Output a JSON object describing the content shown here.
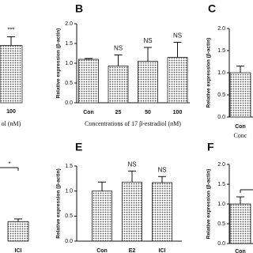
{
  "chart_data": [
    {
      "type": "bar",
      "categories": [
        "100"
      ],
      "values": [
        1.45
      ],
      "errors": [
        0.22
      ],
      "annotations": [
        "***"
      ],
      "xlabel": "ol (nM)",
      "ylim": [
        0,
        2.0
      ],
      "color": "#9a9a9a"
    },
    {
      "type": "bar",
      "title": "B",
      "categories": [
        "Con",
        "25",
        "50",
        "100"
      ],
      "values": [
        1.1,
        0.93,
        1.05,
        1.15
      ],
      "errors": [
        0.02,
        0.28,
        0.35,
        0.38
      ],
      "annotations": [
        null,
        "NS",
        "NS",
        "NS"
      ],
      "ylabel": "Relative expression (β-actin)",
      "xlabel": "Concentrations of 17 β-estradiol (nM)",
      "ylim": [
        0,
        2.0
      ],
      "yticks": [
        {
          "value": 0,
          "label": "0.0"
        },
        0.5,
        {
          "value": 1,
          "label": "1.0"
        },
        1.5,
        {
          "value": 2,
          "label": "2.0"
        }
      ],
      "color": "#9a9a9a"
    },
    {
      "type": "bar",
      "title": "C",
      "categories": [
        "Con"
      ],
      "values": [
        1.0
      ],
      "errors": [
        0.15
      ],
      "ylabel": "Relative expression (β-actin)",
      "xlabel": "Conc",
      "ylim": [
        0,
        2.0
      ],
      "yticks": [
        {
          "value": 0,
          "label": "0.0"
        },
        0.5,
        {
          "value": 1,
          "label": "1.0"
        },
        1.5,
        {
          "value": 2,
          "label": "2.0"
        }
      ],
      "color": "#9a9a9a"
    },
    {
      "type": "bar",
      "categories": [
        "ICI"
      ],
      "values": [
        0.45
      ],
      "errors": [
        0.06
      ],
      "significance": "*",
      "ylim": [
        0,
        2.0
      ],
      "color": "#9a9a9a"
    },
    {
      "type": "bar",
      "title": "E",
      "categories": [
        "Con",
        "E2",
        "ICI"
      ],
      "values": [
        1.0,
        1.18,
        1.17
      ],
      "errors": [
        0.18,
        0.22,
        0.12
      ],
      "annotations": [
        null,
        "NS",
        "NS"
      ],
      "ylabel": "Relative expression (β-actin)",
      "ylim": [
        0,
        1.5
      ],
      "yticks": [
        {
          "value": 0,
          "label": "0.0"
        },
        0.5,
        {
          "value": 1,
          "label": "1.0"
        },
        1.5
      ],
      "color": "#9a9a9a"
    },
    {
      "type": "bar",
      "title": "F",
      "categories": [
        "Con"
      ],
      "values": [
        1.0
      ],
      "errors": [
        0.18
      ],
      "ylabel": "Relative expression (β-actin)",
      "ylim": [
        0,
        2.0
      ],
      "yticks": [
        {
          "value": 0,
          "label": "0.0"
        },
        0.5,
        {
          "value": 1,
          "label": "1.0"
        },
        1.5,
        {
          "value": 2,
          "label": "2.0"
        }
      ],
      "color": "#9a9a9a"
    }
  ]
}
